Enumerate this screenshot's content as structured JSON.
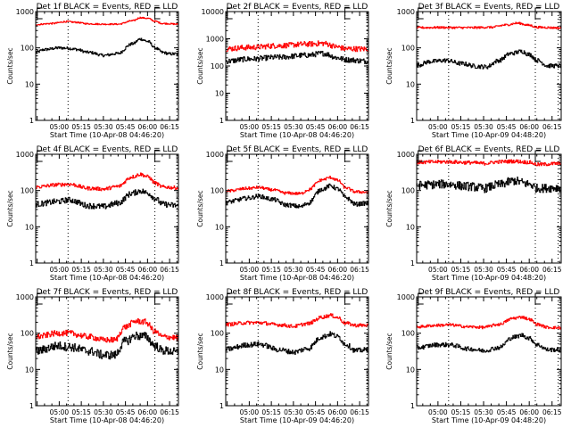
{
  "chart_data": [
    {
      "type": "line",
      "title": "Det 1f BLACK = Events, RED = LLD",
      "ylabel": "Counts/sec",
      "xlabel": "Start Time (10-Apr-08 04:46:20)",
      "yscale": "log",
      "ylim": [
        1,
        1000
      ],
      "ytick_labels": [
        "1",
        "10",
        "100",
        "1000"
      ],
      "x_tick_labels": [
        "05:00",
        "05:15",
        "05:30",
        "05:45",
        "06:00",
        "06:15"
      ],
      "xlim_minutes": [
        -16,
        81
      ],
      "markers_minutes": [
        6,
        65,
        80
      ],
      "e_markers_minutes": [
        -15,
        65
      ],
      "series": [
        {
          "name": "Events",
          "color": "#000000",
          "noise": 0.04,
          "x": [
            -16,
            -10,
            0,
            6,
            10,
            20,
            30,
            40,
            50,
            55,
            60,
            65,
            70,
            75,
            81
          ],
          "values": [
            75,
            90,
            100,
            98,
            92,
            75,
            62,
            70,
            130,
            175,
            150,
            100,
            75,
            68,
            68
          ]
        },
        {
          "name": "LLD",
          "color": "#ff0000",
          "noise": 0.02,
          "x": [
            -16,
            -5,
            5,
            10,
            20,
            30,
            40,
            50,
            55,
            60,
            65,
            70,
            81
          ],
          "values": [
            440,
            470,
            530,
            510,
            460,
            450,
            450,
            560,
            680,
            650,
            540,
            470,
            450
          ]
        }
      ]
    },
    {
      "type": "line",
      "title": "Det 2f BLACK = Events, RED = LLD",
      "ylabel": "Counts/sec",
      "xlabel": "Start Time (10-Apr-08 04:46:20)",
      "yscale": "log",
      "ylim": [
        1,
        10000
      ],
      "ytick_labels": [
        "1",
        "10",
        "100",
        "1000",
        "10000"
      ],
      "x_tick_labels": [
        "05:00",
        "05:15",
        "05:30",
        "05:45",
        "06:00",
        "06:15"
      ],
      "xlim_minutes": [
        -16,
        81
      ],
      "markers_minutes": [
        6,
        65,
        80
      ],
      "e_markers_minutes": [
        -15,
        65
      ],
      "series": [
        {
          "name": "Events",
          "color": "#000000",
          "noise": 0.1,
          "x": [
            -16,
            0,
            20,
            40,
            50,
            60,
            65,
            81
          ],
          "values": [
            150,
            180,
            210,
            250,
            290,
            200,
            170,
            150
          ]
        },
        {
          "name": "LLD",
          "color": "#ff0000",
          "noise": 0.1,
          "x": [
            -16,
            0,
            20,
            40,
            50,
            60,
            65,
            81
          ],
          "values": [
            430,
            480,
            560,
            640,
            680,
            500,
            430,
            420
          ]
        }
      ]
    },
    {
      "type": "line",
      "title": "Det 3f BLACK = Events, RED = LLD",
      "ylabel": "Counts/sec",
      "xlabel": "Start Time (10-Apr-09 04:48:20)",
      "yscale": "log",
      "ylim": [
        1,
        1000
      ],
      "ytick_labels": [
        "1",
        "10",
        "100",
        "1000"
      ],
      "x_tick_labels": [
        "05:00",
        "05:15",
        "05:30",
        "05:45",
        "06:00",
        "06:15"
      ],
      "xlim_minutes": [
        -14,
        81
      ],
      "markers_minutes": [
        7,
        64,
        79
      ],
      "e_markers_minutes": [
        -13,
        64
      ],
      "series": [
        {
          "name": "Events",
          "color": "#000000",
          "noise": 0.06,
          "x": [
            -14,
            -5,
            5,
            15,
            25,
            32,
            40,
            48,
            55,
            60,
            65,
            72,
            81
          ],
          "values": [
            33,
            42,
            45,
            37,
            31,
            30,
            45,
            70,
            80,
            65,
            45,
            32,
            32
          ]
        },
        {
          "name": "LLD",
          "color": "#ff0000",
          "noise": 0.03,
          "x": [
            -14,
            0,
            20,
            35,
            45,
            52,
            60,
            65,
            81
          ],
          "values": [
            360,
            365,
            360,
            370,
            430,
            480,
            420,
            370,
            355
          ]
        }
      ]
    },
    {
      "type": "line",
      "title": "Det 4f BLACK = Events, RED = LLD",
      "ylabel": "Counts/sec",
      "xlabel": "Start Time (10-Apr-08 04:46:20)",
      "yscale": "log",
      "ylim": [
        1,
        1000
      ],
      "ytick_labels": [
        "1",
        "10",
        "100",
        "1000"
      ],
      "x_tick_labels": [
        "05:00",
        "05:15",
        "05:30",
        "05:45",
        "06:00",
        "06:15"
      ],
      "xlim_minutes": [
        -16,
        81
      ],
      "markers_minutes": [
        6,
        65,
        80
      ],
      "e_markers_minutes": [
        -15,
        65
      ],
      "series": [
        {
          "name": "Events",
          "color": "#000000",
          "noise": 0.08,
          "x": [
            -16,
            0,
            6,
            20,
            30,
            40,
            50,
            55,
            60,
            65,
            70,
            81
          ],
          "values": [
            42,
            50,
            55,
            38,
            36,
            45,
            85,
            98,
            85,
            60,
            42,
            38
          ]
        },
        {
          "name": "LLD",
          "color": "#ff0000",
          "noise": 0.05,
          "x": [
            -16,
            0,
            6,
            20,
            30,
            40,
            50,
            55,
            60,
            65,
            70,
            81
          ],
          "values": [
            125,
            145,
            150,
            115,
            110,
            130,
            240,
            280,
            240,
            160,
            125,
            118
          ]
        }
      ]
    },
    {
      "type": "line",
      "title": "Det 5f BLACK = Events, RED = LLD",
      "ylabel": "Counts/sec",
      "xlabel": "Start Time (10-Apr-08 04:46:20)",
      "yscale": "log",
      "ylim": [
        1,
        1000
      ],
      "ytick_labels": [
        "1",
        "10",
        "100",
        "1000"
      ],
      "x_tick_labels": [
        "05:00",
        "05:15",
        "05:30",
        "05:45",
        "06:00",
        "06:15"
      ],
      "xlim_minutes": [
        -16,
        81
      ],
      "markers_minutes": [
        6,
        65,
        80
      ],
      "e_markers_minutes": [
        -15,
        65
      ],
      "series": [
        {
          "name": "Events",
          "color": "#000000",
          "noise": 0.06,
          "x": [
            -16,
            0,
            6,
            15,
            25,
            35,
            40,
            50,
            55,
            60,
            65,
            72,
            81
          ],
          "values": [
            48,
            62,
            70,
            58,
            40,
            36,
            45,
            110,
            135,
            110,
            65,
            42,
            45
          ]
        },
        {
          "name": "LLD",
          "color": "#ff0000",
          "noise": 0.04,
          "x": [
            -16,
            0,
            6,
            15,
            25,
            35,
            40,
            50,
            55,
            60,
            65,
            72,
            81
          ],
          "values": [
            96,
            115,
            122,
            105,
            85,
            82,
            105,
            200,
            230,
            190,
            120,
            92,
            90
          ]
        }
      ]
    },
    {
      "type": "line",
      "title": "Det 6f BLACK = Events, RED = LLD",
      "ylabel": "Counts/sec",
      "xlabel": "Start Time (10-Apr-09 04:48:20)",
      "yscale": "log",
      "ylim": [
        1,
        1000
      ],
      "ytick_labels": [
        "1",
        "10",
        "100",
        "1000"
      ],
      "x_tick_labels": [
        "05:00",
        "05:15",
        "05:30",
        "05:45",
        "06:00",
        "06:15"
      ],
      "xlim_minutes": [
        -14,
        81
      ],
      "markers_minutes": [
        7,
        64,
        79
      ],
      "e_markers_minutes": [
        -13,
        64
      ],
      "series": [
        {
          "name": "Events",
          "color": "#000000",
          "noise": 0.12,
          "x": [
            -14,
            5,
            20,
            30,
            40,
            50,
            60,
            65,
            81
          ],
          "values": [
            140,
            150,
            130,
            115,
            145,
            185,
            150,
            115,
            120
          ]
        },
        {
          "name": "LLD",
          "color": "#ff0000",
          "noise": 0.05,
          "x": [
            -14,
            5,
            20,
            30,
            40,
            50,
            60,
            65,
            81
          ],
          "values": [
            600,
            620,
            590,
            560,
            620,
            640,
            600,
            520,
            560
          ]
        }
      ]
    },
    {
      "type": "line",
      "title": "Det 7f BLACK = Events, RED = LLD",
      "ylabel": "Counts/sec",
      "xlabel": "Start Time (10-Apr-08 04:46:20)",
      "yscale": "log",
      "ylim": [
        1,
        1000
      ],
      "ytick_labels": [
        "1",
        "10",
        "100",
        "1000"
      ],
      "x_tick_labels": [
        "05:00",
        "05:15",
        "05:30",
        "05:45",
        "06:00",
        "06:15"
      ],
      "xlim_minutes": [
        -16,
        81
      ],
      "markers_minutes": [
        6,
        65,
        80
      ],
      "e_markers_minutes": [
        -15,
        65
      ],
      "series": [
        {
          "name": "Events",
          "color": "#000000",
          "noise": 0.12,
          "x": [
            -16,
            0,
            6,
            20,
            30,
            38,
            45,
            52,
            58,
            65,
            70,
            81
          ],
          "values": [
            32,
            45,
            42,
            32,
            25,
            25,
            60,
            85,
            82,
            45,
            33,
            30
          ]
        },
        {
          "name": "LLD",
          "color": "#ff0000",
          "noise": 0.08,
          "x": [
            -16,
            0,
            6,
            20,
            30,
            38,
            45,
            52,
            58,
            65,
            70,
            81
          ],
          "values": [
            80,
            100,
            100,
            80,
            65,
            65,
            150,
            215,
            205,
            110,
            80,
            75
          ]
        }
      ]
    },
    {
      "type": "line",
      "title": "Det 8f BLACK = Events, RED = LLD",
      "ylabel": "Counts/sec",
      "xlabel": "Start Time (10-Apr-09 04:46:20)",
      "yscale": "log",
      "ylim": [
        1,
        1000
      ],
      "ytick_labels": [
        "1",
        "10",
        "100",
        "1000"
      ],
      "x_tick_labels": [
        "05:00",
        "05:15",
        "05:30",
        "05:45",
        "06:00",
        "06:15"
      ],
      "xlim_minutes": [
        -16,
        81
      ],
      "markers_minutes": [
        6,
        65,
        80
      ],
      "e_markers_minutes": [
        -15,
        65
      ],
      "series": [
        {
          "name": "Events",
          "color": "#000000",
          "noise": 0.07,
          "x": [
            -16,
            0,
            6,
            20,
            30,
            40,
            50,
            55,
            60,
            65,
            72,
            81
          ],
          "values": [
            36,
            48,
            50,
            35,
            30,
            38,
            80,
            95,
            80,
            50,
            33,
            35
          ]
        },
        {
          "name": "LLD",
          "color": "#ff0000",
          "noise": 0.05,
          "x": [
            -16,
            0,
            6,
            20,
            30,
            40,
            50,
            55,
            60,
            65,
            72,
            81
          ],
          "values": [
            175,
            195,
            195,
            170,
            155,
            185,
            280,
            310,
            270,
            190,
            165,
            165
          ]
        }
      ]
    },
    {
      "type": "line",
      "title": "Det 9f BLACK = Events, RED = LLD",
      "ylabel": "Counts/sec",
      "xlabel": "Start Time (10-Apr-09 04:48:20)",
      "yscale": "log",
      "ylim": [
        1,
        1000
      ],
      "ytick_labels": [
        "1",
        "10",
        "100",
        "1000"
      ],
      "x_tick_labels": [
        "05:00",
        "05:15",
        "05:30",
        "05:45",
        "06:00",
        "06:15"
      ],
      "xlim_minutes": [
        -14,
        81
      ],
      "markers_minutes": [
        7,
        64,
        79
      ],
      "e_markers_minutes": [
        -13,
        64
      ],
      "series": [
        {
          "name": "Events",
          "color": "#000000",
          "noise": 0.06,
          "x": [
            -14,
            0,
            7,
            20,
            30,
            40,
            50,
            55,
            60,
            65,
            72,
            81
          ],
          "values": [
            40,
            48,
            48,
            37,
            33,
            40,
            78,
            88,
            72,
            48,
            35,
            35
          ]
        },
        {
          "name": "LLD",
          "color": "#ff0000",
          "noise": 0.04,
          "x": [
            -14,
            0,
            7,
            20,
            30,
            40,
            50,
            55,
            60,
            65,
            72,
            81
          ],
          "values": [
            150,
            165,
            170,
            150,
            145,
            175,
            260,
            280,
            240,
            175,
            145,
            140
          ]
        }
      ]
    }
  ]
}
